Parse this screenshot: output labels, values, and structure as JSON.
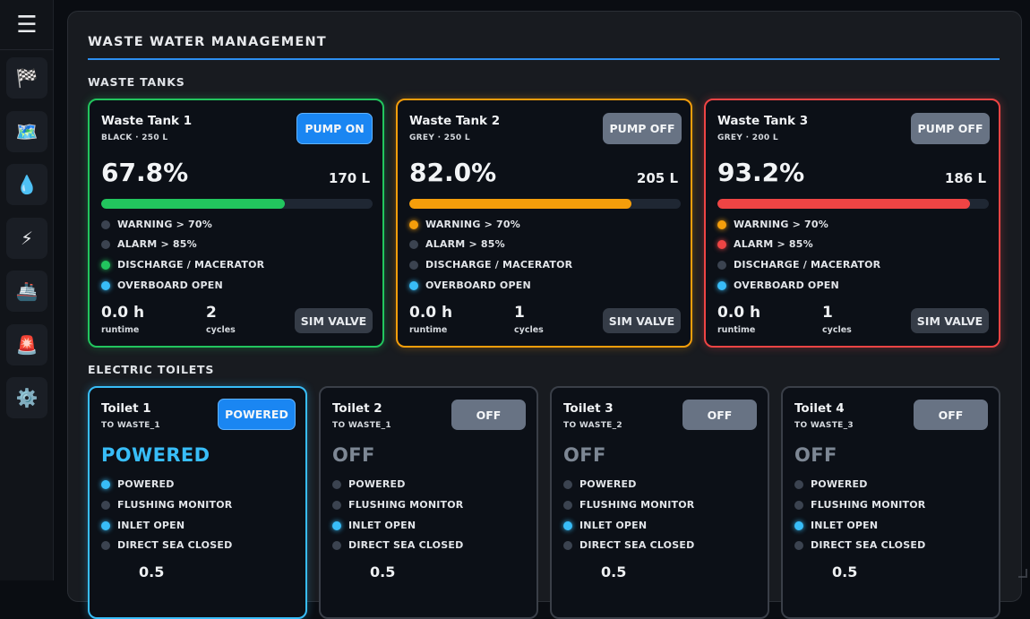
{
  "page": {
    "title": "WASTE WATER MANAGEMENT"
  },
  "sections": {
    "tanks_title": "WASTE TANKS",
    "toilets_title": "ELECTRIC TOILETS"
  },
  "sidebar": {
    "menu_icon": "hamburger-icon",
    "items": [
      {
        "name": "checkered-flag-icon",
        "glyph": "🏁"
      },
      {
        "name": "map-icon",
        "glyph": "🗺️"
      },
      {
        "name": "water-drop-icon",
        "glyph": "💧"
      },
      {
        "name": "lightning-icon",
        "glyph": "⚡"
      },
      {
        "name": "ship-icon",
        "glyph": "🚢"
      },
      {
        "name": "siren-icon",
        "glyph": "🚨"
      },
      {
        "name": "gear-icon",
        "glyph": "⚙️"
      }
    ]
  },
  "colors": {
    "accent": "#2d8ff0",
    "ok": "#22c55e",
    "warning": "#f59e0b",
    "alarm": "#ef4444",
    "info": "#38bdf8",
    "inactive_dot": "#3b4350",
    "inactive_border": "#3a3f48"
  },
  "tanks": [
    {
      "name": "Waste Tank 1",
      "sub": "BLACK · 250 L",
      "pump_label": "PUMP ON",
      "pump_on": true,
      "percent": "67.8%",
      "fill": 0.678,
      "liters": "170 L",
      "status": "ok",
      "indicators": [
        {
          "label": "WARNING > 70%",
          "state": "off"
        },
        {
          "label": "ALARM > 85%",
          "state": "off"
        },
        {
          "label": "DISCHARGE / MACERATOR",
          "state": "ok"
        },
        {
          "label": "OVERBOARD OPEN",
          "state": "info"
        }
      ],
      "runtime": "0.0 h",
      "runtime_label": "runtime",
      "cycles": "2",
      "cycles_label": "cycles",
      "valve_label": "SIM VALVE"
    },
    {
      "name": "Waste Tank 2",
      "sub": "GREY · 250 L",
      "pump_label": "PUMP OFF",
      "pump_on": false,
      "percent": "82.0%",
      "fill": 0.82,
      "liters": "205 L",
      "status": "warning",
      "indicators": [
        {
          "label": "WARNING > 70%",
          "state": "warning"
        },
        {
          "label": "ALARM > 85%",
          "state": "off"
        },
        {
          "label": "DISCHARGE / MACERATOR",
          "state": "off"
        },
        {
          "label": "OVERBOARD OPEN",
          "state": "info"
        }
      ],
      "runtime": "0.0 h",
      "runtime_label": "runtime",
      "cycles": "1",
      "cycles_label": "cycles",
      "valve_label": "SIM VALVE"
    },
    {
      "name": "Waste Tank 3",
      "sub": "GREY · 200 L",
      "pump_label": "PUMP OFF",
      "pump_on": false,
      "percent": "93.2%",
      "fill": 0.932,
      "liters": "186 L",
      "status": "alarm",
      "indicators": [
        {
          "label": "WARNING > 70%",
          "state": "warning"
        },
        {
          "label": "ALARM > 85%",
          "state": "alarm"
        },
        {
          "label": "DISCHARGE / MACERATOR",
          "state": "off"
        },
        {
          "label": "OVERBOARD OPEN",
          "state": "info"
        }
      ],
      "runtime": "0.0 h",
      "runtime_label": "runtime",
      "cycles": "1",
      "cycles_label": "cycles",
      "valve_label": "SIM VALVE"
    }
  ],
  "toilets": [
    {
      "name": "Toilet 1",
      "sub": "TO WASTE_1",
      "button_label": "POWERED",
      "powered": true,
      "state_text": "POWERED",
      "indicators": [
        {
          "label": "POWERED",
          "state": "info"
        },
        {
          "label": "FLUSHING MONITOR",
          "state": "off"
        },
        {
          "label": "INLET OPEN",
          "state": "info"
        },
        {
          "label": "DIRECT SEA CLOSED",
          "state": "off"
        }
      ],
      "flow": "0.5"
    },
    {
      "name": "Toilet 2",
      "sub": "TO WASTE_1",
      "button_label": "OFF",
      "powered": false,
      "state_text": "OFF",
      "indicators": [
        {
          "label": "POWERED",
          "state": "off"
        },
        {
          "label": "FLUSHING MONITOR",
          "state": "off"
        },
        {
          "label": "INLET OPEN",
          "state": "info"
        },
        {
          "label": "DIRECT SEA CLOSED",
          "state": "off"
        }
      ],
      "flow": "0.5"
    },
    {
      "name": "Toilet 3",
      "sub": "TO WASTE_2",
      "button_label": "OFF",
      "powered": false,
      "state_text": "OFF",
      "indicators": [
        {
          "label": "POWERED",
          "state": "off"
        },
        {
          "label": "FLUSHING MONITOR",
          "state": "off"
        },
        {
          "label": "INLET OPEN",
          "state": "info"
        },
        {
          "label": "DIRECT SEA CLOSED",
          "state": "off"
        }
      ],
      "flow": "0.5"
    },
    {
      "name": "Toilet 4",
      "sub": "TO WASTE_3",
      "button_label": "OFF",
      "powered": false,
      "state_text": "OFF",
      "indicators": [
        {
          "label": "POWERED",
          "state": "off"
        },
        {
          "label": "FLUSHING MONITOR",
          "state": "off"
        },
        {
          "label": "INLET OPEN",
          "state": "info"
        },
        {
          "label": "DIRECT SEA CLOSED",
          "state": "off"
        }
      ],
      "flow": "0.5"
    }
  ]
}
